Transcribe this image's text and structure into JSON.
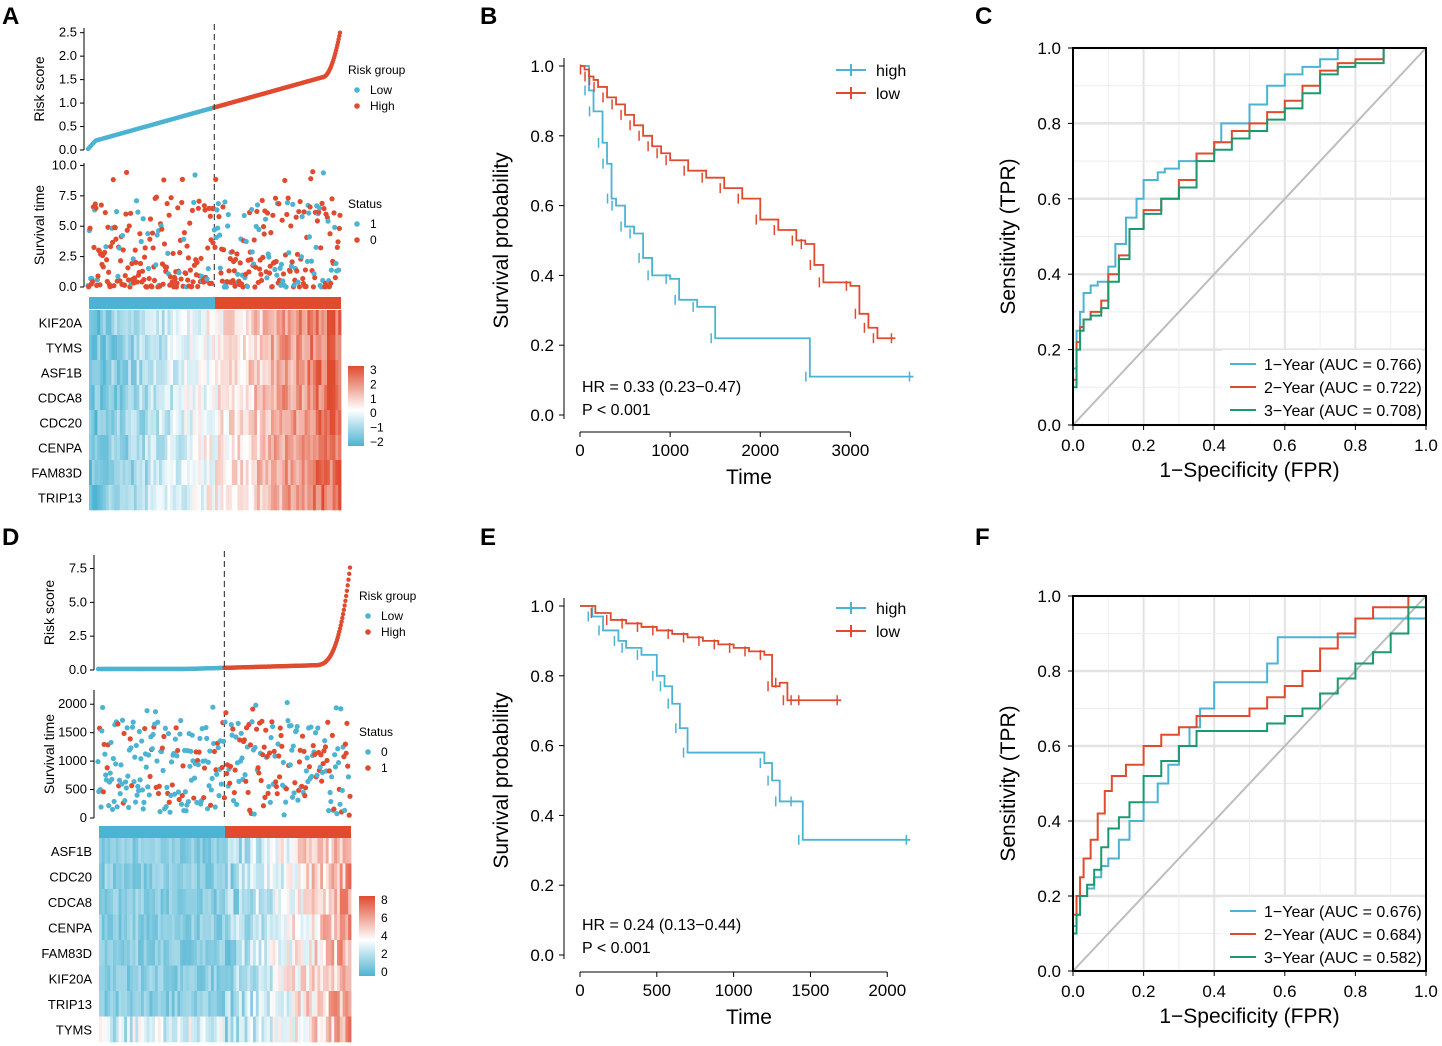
{
  "panels": [
    {
      "label": "A",
      "type": "risk_panel",
      "risk_score": {
        "ylabel": "Risk score",
        "ticks": [
          "0.0",
          "0.5",
          "1.0",
          "1.5",
          "2.0",
          "2.5"
        ],
        "ymax": 2.6,
        "n": 380,
        "cutoff_index": 190,
        "max_value": 2.5
      },
      "risk_legend": {
        "title": "Risk group",
        "items": [
          "Low",
          "High"
        ]
      },
      "survival": {
        "ylabel": "Survival time",
        "ticks": [
          "0.0",
          "2.5",
          "5.0",
          "7.5",
          "10.0"
        ],
        "ymax": 10.2,
        "scatter_max": 10.0
      },
      "status_legend": {
        "title": "Status",
        "items": [
          "1",
          "0"
        ],
        "colors": [
          "#4db3d2",
          "#e04b2f"
        ]
      },
      "heatmap": {
        "genes": [
          "KIF20A",
          "TYMS",
          "ASF1B",
          "CDCA8",
          "CDC20",
          "CENPA",
          "FAM83D",
          "TRIP13"
        ],
        "scale_ticks": [
          "3",
          "2",
          "1",
          "0",
          "−1",
          "−2"
        ]
      }
    },
    {
      "label": "D",
      "type": "risk_panel",
      "risk_score": {
        "ylabel": "Risk score",
        "ticks": [
          "0.0",
          "2.5",
          "5.0",
          "7.5"
        ],
        "ymax": 8.5,
        "n": 330,
        "cutoff_index": 165,
        "max_value": 8.0
      },
      "risk_legend": {
        "title": "Risk group",
        "items": [
          "Low",
          "High"
        ]
      },
      "survival": {
        "ylabel": "Survival time",
        "ticks": [
          "0",
          "500",
          "1000",
          "1500",
          "2000"
        ],
        "ymax": 2250,
        "scatter_max": 2150
      },
      "status_legend": {
        "title": "Status",
        "items": [
          "0",
          "1"
        ],
        "colors": [
          "#4db3d2",
          "#e04b2f"
        ]
      },
      "heatmap": {
        "genes": [
          "ASF1B",
          "CDC20",
          "CDCA8",
          "CENPA",
          "FAM83D",
          "KIF20A",
          "TRIP13",
          "TYMS"
        ],
        "scale_ticks": [
          "8",
          "6",
          "4",
          "2",
          "0"
        ]
      }
    },
    {
      "label": "B",
      "type": "km",
      "xlabel": "Time",
      "ylabel": "Survival probability",
      "xticks": [
        "0",
        "1000",
        "2000",
        "3000"
      ],
      "xlim": [
        0,
        3750
      ],
      "yticks": [
        "0.0",
        "0.2",
        "0.4",
        "0.6",
        "0.8",
        "1.0"
      ],
      "ylim": [
        0,
        1.0
      ],
      "legend": [
        "high",
        "low"
      ],
      "hr_text": "HR = 0.33 (0.23−0.47)",
      "p_text": "P < 0.001",
      "series": [
        {
          "name": "high",
          "x": [
            0,
            100,
            150,
            250,
            300,
            350,
            400,
            500,
            600,
            700,
            800,
            1000,
            1100,
            1300,
            1500,
            2550,
            3700
          ],
          "y": [
            1.0,
            0.93,
            0.87,
            0.78,
            0.72,
            0.62,
            0.6,
            0.54,
            0.52,
            0.45,
            0.4,
            0.39,
            0.33,
            0.31,
            0.22,
            0.11,
            0.11
          ]
        },
        {
          "name": "low",
          "x": [
            0,
            50,
            100,
            150,
            200,
            300,
            400,
            500,
            600,
            700,
            800,
            900,
            1000,
            1200,
            1400,
            1600,
            1800,
            2000,
            2200,
            2400,
            2500,
            2600,
            2700,
            3000,
            3100,
            3200,
            3300,
            3500
          ],
          "y": [
            1.0,
            0.99,
            0.97,
            0.96,
            0.94,
            0.91,
            0.89,
            0.86,
            0.83,
            0.8,
            0.77,
            0.75,
            0.73,
            0.7,
            0.68,
            0.65,
            0.62,
            0.56,
            0.53,
            0.5,
            0.49,
            0.43,
            0.38,
            0.37,
            0.29,
            0.25,
            0.22,
            0.22
          ]
        }
      ]
    },
    {
      "label": "E",
      "type": "km",
      "xlabel": "Time",
      "ylabel": "Survival probability",
      "xticks": [
        "0",
        "500",
        "1000",
        "1500",
        "2000"
      ],
      "xlim": [
        0,
        2200
      ],
      "yticks": [
        "0.0",
        "0.2",
        "0.4",
        "0.6",
        "0.8",
        "1.0"
      ],
      "ylim": [
        0,
        1.0
      ],
      "legend": [
        "high",
        "low"
      ],
      "hr_text": "HR = 0.24 (0.13−0.44)",
      "p_text": "P < 0.001",
      "series": [
        {
          "name": "high",
          "x": [
            0,
            80,
            150,
            250,
            300,
            400,
            500,
            550,
            600,
            650,
            700,
            1200,
            1250,
            1300,
            1400,
            1450,
            2150
          ],
          "y": [
            1.0,
            0.97,
            0.93,
            0.9,
            0.88,
            0.86,
            0.8,
            0.77,
            0.72,
            0.65,
            0.58,
            0.55,
            0.5,
            0.44,
            0.44,
            0.33,
            0.33
          ]
        },
        {
          "name": "low",
          "x": [
            0,
            100,
            200,
            300,
            400,
            500,
            600,
            700,
            800,
            900,
            1000,
            1100,
            1200,
            1250,
            1300,
            1350,
            1400,
            1450,
            1700
          ],
          "y": [
            1.0,
            0.98,
            0.96,
            0.95,
            0.94,
            0.93,
            0.92,
            0.91,
            0.9,
            0.89,
            0.88,
            0.87,
            0.86,
            0.77,
            0.78,
            0.73,
            0.73,
            0.73,
            0.73
          ]
        }
      ]
    },
    {
      "label": "C",
      "type": "roc",
      "xlabel": "1−Specificity (FPR)",
      "ylabel": "Sensitivity (TPR)",
      "ticks": [
        "0.0",
        "0.2",
        "0.4",
        "0.6",
        "0.8",
        "1.0"
      ],
      "series": [
        {
          "name": "1−Year (AUC = 0.766)",
          "color": "#4db3d2",
          "x": [
            0,
            0.01,
            0.02,
            0.03,
            0.05,
            0.07,
            0.1,
            0.12,
            0.15,
            0.18,
            0.2,
            0.24,
            0.26,
            0.3,
            0.35,
            0.4,
            0.42,
            0.45,
            0.5,
            0.55,
            0.6,
            0.65,
            0.7,
            0.75,
            0.8,
            0.85,
            0.88,
            0.95,
            1.0
          ],
          "y": [
            0,
            0.15,
            0.25,
            0.3,
            0.35,
            0.37,
            0.38,
            0.42,
            0.48,
            0.55,
            0.6,
            0.65,
            0.67,
            0.68,
            0.7,
            0.72,
            0.75,
            0.8,
            0.8,
            0.85,
            0.9,
            0.93,
            0.95,
            0.97,
            1.0,
            1.0,
            1.0,
            1.0,
            1.0
          ]
        },
        {
          "name": "2−Year (AUC = 0.722)",
          "color": "#e04b2f",
          "x": [
            0,
            0.01,
            0.02,
            0.03,
            0.05,
            0.08,
            0.1,
            0.13,
            0.16,
            0.2,
            0.25,
            0.3,
            0.35,
            0.4,
            0.45,
            0.5,
            0.55,
            0.6,
            0.65,
            0.7,
            0.75,
            0.8,
            0.85,
            0.88,
            0.9,
            0.95,
            1.0
          ],
          "y": [
            0,
            0.12,
            0.22,
            0.26,
            0.28,
            0.3,
            0.33,
            0.4,
            0.45,
            0.52,
            0.57,
            0.6,
            0.65,
            0.72,
            0.75,
            0.78,
            0.8,
            0.83,
            0.86,
            0.9,
            0.94,
            0.96,
            0.97,
            0.97,
            1.0,
            1.0,
            1.0
          ]
        },
        {
          "name": "3−Year (AUC = 0.708)",
          "color": "#1a9a6e",
          "x": [
            0,
            0.01,
            0.02,
            0.03,
            0.05,
            0.08,
            0.1,
            0.13,
            0.16,
            0.2,
            0.25,
            0.3,
            0.35,
            0.4,
            0.45,
            0.5,
            0.55,
            0.6,
            0.65,
            0.7,
            0.75,
            0.8,
            0.85,
            0.88,
            0.9,
            0.95,
            1.0
          ],
          "y": [
            0,
            0.1,
            0.2,
            0.25,
            0.28,
            0.29,
            0.31,
            0.38,
            0.44,
            0.52,
            0.56,
            0.6,
            0.63,
            0.7,
            0.73,
            0.76,
            0.78,
            0.81,
            0.84,
            0.88,
            0.93,
            0.95,
            0.96,
            0.96,
            1.0,
            1.0,
            1.0
          ]
        }
      ]
    },
    {
      "label": "F",
      "type": "roc",
      "xlabel": "1−Specificity (FPR)",
      "ylabel": "Sensitivity (TPR)",
      "ticks": [
        "0.0",
        "0.2",
        "0.4",
        "0.6",
        "0.8",
        "1.0"
      ],
      "series": [
        {
          "name": "1−Year (AUC = 0.676)",
          "color": "#4db3d2",
          "x": [
            0,
            0.01,
            0.02,
            0.04,
            0.06,
            0.08,
            0.1,
            0.13,
            0.16,
            0.2,
            0.24,
            0.27,
            0.3,
            0.33,
            0.36,
            0.4,
            0.45,
            0.5,
            0.55,
            0.58,
            0.62,
            0.68,
            0.75,
            0.8,
            0.85,
            0.9,
            0.95,
            1.0
          ],
          "y": [
            0,
            0.12,
            0.15,
            0.2,
            0.22,
            0.25,
            0.28,
            0.3,
            0.35,
            0.4,
            0.45,
            0.5,
            0.55,
            0.6,
            0.65,
            0.7,
            0.77,
            0.77,
            0.77,
            0.82,
            0.89,
            0.89,
            0.89,
            0.89,
            0.94,
            0.94,
            0.94,
            0.94
          ]
        },
        {
          "name": "2−Year (AUC = 0.684)",
          "color": "#e04b2f",
          "x": [
            0,
            0.01,
            0.02,
            0.03,
            0.05,
            0.07,
            0.09,
            0.11,
            0.13,
            0.15,
            0.2,
            0.25,
            0.3,
            0.35,
            0.4,
            0.45,
            0.5,
            0.55,
            0.6,
            0.65,
            0.7,
            0.75,
            0.8,
            0.85,
            0.9,
            0.95,
            1.0
          ],
          "y": [
            0,
            0.15,
            0.2,
            0.25,
            0.3,
            0.35,
            0.42,
            0.48,
            0.52,
            0.52,
            0.55,
            0.6,
            0.63,
            0.65,
            0.68,
            0.68,
            0.68,
            0.7,
            0.73,
            0.76,
            0.8,
            0.86,
            0.9,
            0.94,
            0.97,
            0.97,
            1.0
          ]
        },
        {
          "name": "3−Year (AUC = 0.582)",
          "color": "#1a9a6e",
          "x": [
            0,
            0.01,
            0.02,
            0.04,
            0.06,
            0.08,
            0.1,
            0.13,
            0.16,
            0.2,
            0.25,
            0.3,
            0.35,
            0.4,
            0.45,
            0.5,
            0.55,
            0.6,
            0.65,
            0.7,
            0.75,
            0.8,
            0.85,
            0.9,
            0.95,
            1.0
          ],
          "y": [
            0,
            0.1,
            0.15,
            0.2,
            0.23,
            0.27,
            0.33,
            0.38,
            0.41,
            0.45,
            0.52,
            0.56,
            0.6,
            0.64,
            0.64,
            0.64,
            0.64,
            0.66,
            0.68,
            0.7,
            0.74,
            0.78,
            0.82,
            0.85,
            0.9,
            0.97
          ]
        }
      ]
    }
  ]
}
